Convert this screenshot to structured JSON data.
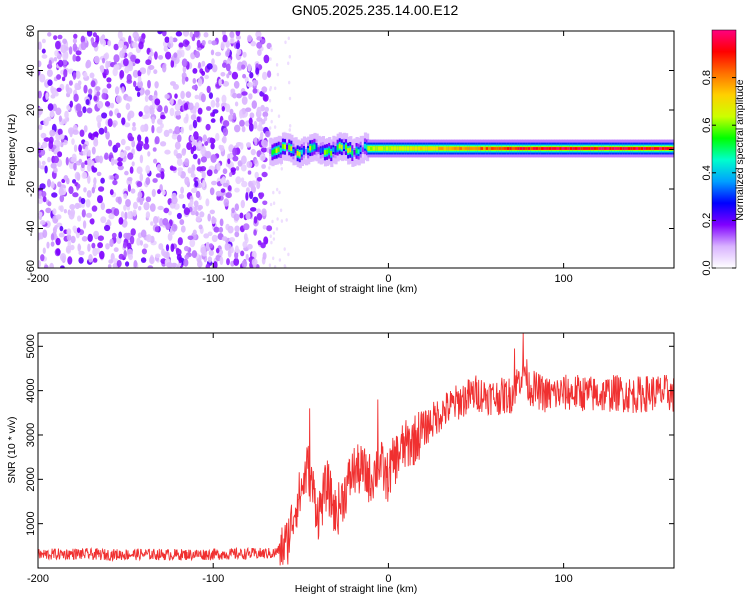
{
  "title": "GN05.2025.235.14.00.E12",
  "chart_data": [
    {
      "type": "heatmap",
      "panel": "top",
      "xlabel": "Height of straight line (km)",
      "ylabel": "Frequency (Hz)",
      "xlim": [
        -200,
        163
      ],
      "ylim": [
        -60,
        60
      ],
      "xticks": [
        -200,
        -100,
        0,
        100
      ],
      "yticks": [
        -60,
        -40,
        -20,
        0,
        20,
        40,
        60
      ],
      "colorbar": {
        "label": "Normalized spectral amplitude",
        "range": [
          0,
          1
        ],
        "ticks": [
          "0.0",
          "0.2",
          "0.4",
          "0.6",
          "0.8"
        ],
        "tick_values": [
          0.0,
          0.2,
          0.4,
          0.6,
          0.8
        ],
        "stops": [
          "#ffffff",
          "#d9b3ff",
          "#8000ff",
          "#0000ff",
          "#00a0ff",
          "#00ffcc",
          "#00ff00",
          "#ccff00",
          "#ffd000",
          "#ff7000",
          "#ff0000",
          "#ff0080"
        ]
      },
      "regions": [
        {
          "name": "noise",
          "x_range": [
            -200,
            -68
          ],
          "freq_range": [
            -60,
            60
          ],
          "amplitude": [
            0.0,
            0.15
          ]
        },
        {
          "name": "echo-onset",
          "x_range": [
            -68,
            -12
          ],
          "freq_center": 0,
          "amplitude": [
            0.1,
            0.7
          ]
        },
        {
          "name": "echo",
          "x_range": [
            -12,
            163
          ],
          "freq_center": 0.5,
          "amplitude": [
            0.2,
            1.0
          ]
        }
      ]
    },
    {
      "type": "line",
      "panel": "bottom",
      "xlabel": "Height of straight line (km)",
      "ylabel": "SNR (10 * v/v)",
      "xlim": [
        -200,
        163
      ],
      "ylim": [
        0,
        5300
      ],
      "xticks": [
        -200,
        -100,
        0,
        100
      ],
      "yticks": [
        1000,
        2000,
        3000,
        4000,
        5000
      ],
      "color": "#f03030",
      "series": [
        {
          "name": "SNR",
          "x": [
            -200,
            -180,
            -160,
            -140,
            -120,
            -100,
            -80,
            -65,
            -58,
            -53,
            -50,
            -46,
            -40,
            -35,
            -30,
            -25,
            -20,
            -15,
            -10,
            -5,
            -1,
            3,
            8,
            15,
            22,
            30,
            40,
            50,
            60,
            70,
            75,
            78,
            80,
            90,
            100,
            110,
            120,
            130,
            140,
            150,
            160,
            163
          ],
          "values": [
            300,
            320,
            300,
            310,
            300,
            310,
            320,
            330,
            550,
            1400,
            1700,
            2300,
            1200,
            1900,
            1200,
            1700,
            2200,
            2200,
            2000,
            2400,
            2000,
            2400,
            2700,
            2900,
            3200,
            3500,
            3750,
            3950,
            3850,
            3900,
            4300,
            4500,
            4100,
            3900,
            3950,
            3950,
            3900,
            3950,
            3900,
            3950,
            3950,
            3900
          ],
          "spikes": [
            {
              "x": -45,
              "value": 3600
            },
            {
              "x": -6,
              "value": 3800
            },
            {
              "x": 77,
              "value": 5300
            },
            {
              "x": 72,
              "value": 4950
            }
          ],
          "noise_band": 420
        }
      ]
    }
  ]
}
